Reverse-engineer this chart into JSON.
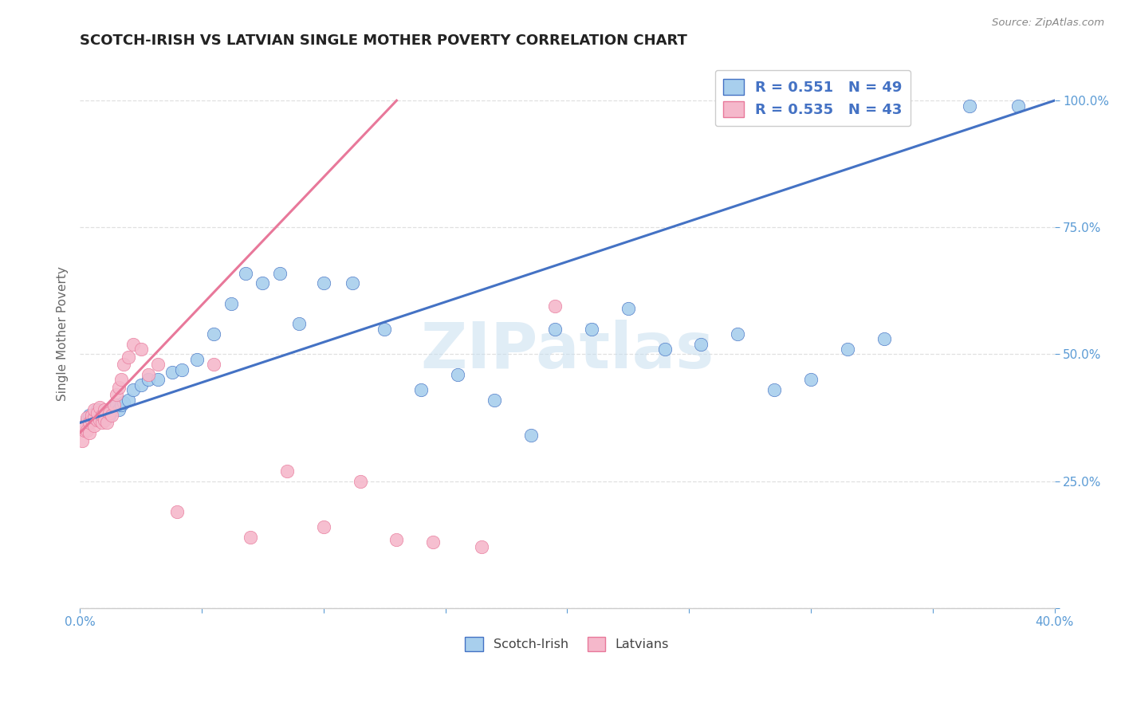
{
  "title": "SCOTCH-IRISH VS LATVIAN SINGLE MOTHER POVERTY CORRELATION CHART",
  "source": "Source: ZipAtlas.com",
  "ylabel": "Single Mother Poverty",
  "xlim": [
    0.0,
    0.4
  ],
  "ylim": [
    0.0,
    1.08
  ],
  "scotch_irish_R": 0.551,
  "scotch_irish_N": 49,
  "latvian_R": 0.535,
  "latvian_N": 43,
  "blue_scatter_color": "#A8CFED",
  "blue_line_color": "#4472C4",
  "pink_scatter_color": "#F5B8CB",
  "pink_line_color": "#E8789A",
  "watermark": "ZIPatlas",
  "scotch_irish_x": [
    0.003,
    0.004,
    0.005,
    0.006,
    0.007,
    0.008,
    0.009,
    0.01,
    0.011,
    0.012,
    0.013,
    0.014,
    0.015,
    0.016,
    0.017,
    0.018,
    0.02,
    0.022,
    0.025,
    0.028,
    0.032,
    0.038,
    0.042,
    0.048,
    0.055,
    0.062,
    0.068,
    0.075,
    0.082,
    0.09,
    0.1,
    0.112,
    0.125,
    0.14,
    0.155,
    0.17,
    0.185,
    0.195,
    0.21,
    0.225,
    0.24,
    0.255,
    0.27,
    0.285,
    0.3,
    0.315,
    0.33,
    0.365,
    0.385
  ],
  "scotch_irish_y": [
    0.37,
    0.38,
    0.375,
    0.38,
    0.39,
    0.37,
    0.38,
    0.385,
    0.375,
    0.38,
    0.39,
    0.395,
    0.4,
    0.39,
    0.4,
    0.405,
    0.41,
    0.43,
    0.44,
    0.45,
    0.45,
    0.465,
    0.47,
    0.49,
    0.54,
    0.6,
    0.66,
    0.64,
    0.66,
    0.56,
    0.64,
    0.64,
    0.55,
    0.43,
    0.46,
    0.41,
    0.34,
    0.55,
    0.55,
    0.59,
    0.51,
    0.52,
    0.54,
    0.43,
    0.45,
    0.51,
    0.53,
    0.99,
    0.99
  ],
  "latvian_x": [
    0.001,
    0.002,
    0.002,
    0.003,
    0.003,
    0.004,
    0.004,
    0.005,
    0.005,
    0.006,
    0.006,
    0.006,
    0.007,
    0.007,
    0.008,
    0.008,
    0.009,
    0.009,
    0.01,
    0.01,
    0.011,
    0.012,
    0.013,
    0.014,
    0.015,
    0.016,
    0.017,
    0.018,
    0.02,
    0.022,
    0.025,
    0.028,
    0.032,
    0.04,
    0.055,
    0.07,
    0.085,
    0.1,
    0.115,
    0.13,
    0.145,
    0.165,
    0.195
  ],
  "latvian_y": [
    0.33,
    0.35,
    0.36,
    0.35,
    0.375,
    0.345,
    0.365,
    0.37,
    0.38,
    0.36,
    0.375,
    0.39,
    0.37,
    0.385,
    0.37,
    0.395,
    0.365,
    0.38,
    0.37,
    0.39,
    0.365,
    0.385,
    0.38,
    0.4,
    0.42,
    0.435,
    0.45,
    0.48,
    0.495,
    0.52,
    0.51,
    0.46,
    0.48,
    0.19,
    0.48,
    0.14,
    0.27,
    0.16,
    0.25,
    0.135,
    0.13,
    0.12,
    0.595
  ],
  "blue_line_x0": 0.0,
  "blue_line_y0": 0.365,
  "blue_line_x1": 0.4,
  "blue_line_y1": 1.0,
  "pink_line_x0": 0.0,
  "pink_line_y0": 0.345,
  "pink_line_x1": 0.13,
  "pink_line_y1": 1.0
}
